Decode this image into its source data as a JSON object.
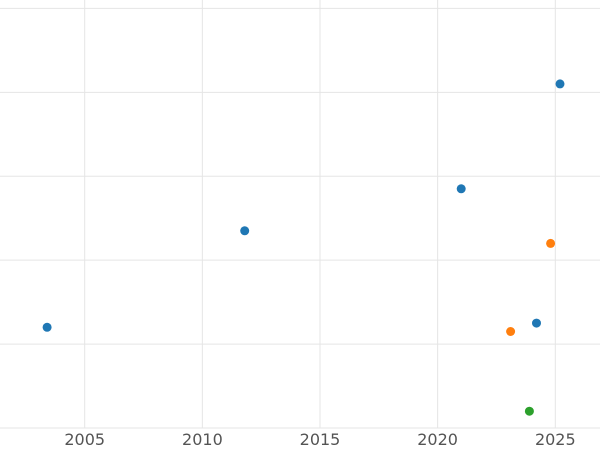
{
  "chart_data": {
    "type": "scatter",
    "title": "",
    "xlabel": "",
    "ylabel": "",
    "grid": true,
    "legend_position": "none",
    "xlim": [
      2001.4,
      2026.9
    ],
    "ylim": [
      0,
      5.1
    ],
    "x_tick_values": [
      2005,
      2010,
      2015,
      2020,
      2025
    ],
    "x_tick_labels": [
      "2005",
      "2010",
      "2015",
      "2020",
      "2025"
    ],
    "y_gridline_values": [
      0,
      1,
      2,
      3,
      4,
      5
    ],
    "marker_radius": 4.5,
    "colors": {
      "gridline": "#e5e5e5",
      "tick_label": "#545454",
      "background": "#ffffff"
    },
    "series": [
      {
        "name": "series-blue",
        "color": "#1f77b4",
        "points": [
          {
            "x": 2003.4,
            "y": 1.2
          },
          {
            "x": 2011.8,
            "y": 2.35
          },
          {
            "x": 2021.0,
            "y": 2.85
          },
          {
            "x": 2024.2,
            "y": 1.25
          },
          {
            "x": 2025.2,
            "y": 4.1
          }
        ]
      },
      {
        "name": "series-orange",
        "color": "#ff7f0e",
        "points": [
          {
            "x": 2023.1,
            "y": 1.15
          },
          {
            "x": 2024.8,
            "y": 2.2
          }
        ]
      },
      {
        "name": "series-green",
        "color": "#2ca02c",
        "points": [
          {
            "x": 2023.9,
            "y": 0.2
          }
        ]
      }
    ]
  }
}
